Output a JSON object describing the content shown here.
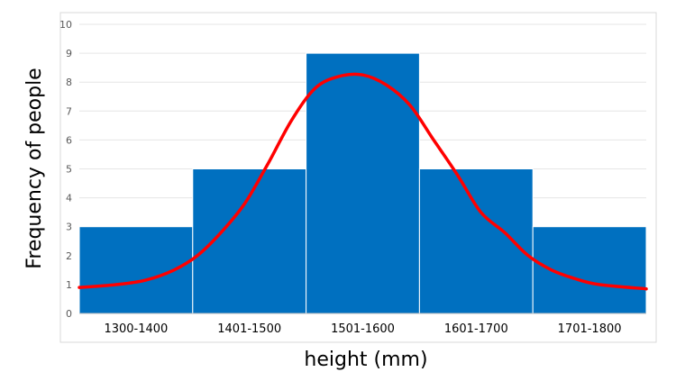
{
  "chart_data": {
    "type": "bar",
    "categories": [
      "1300-1400",
      "1401-1500",
      "1501-1600",
      "1601-1700",
      "1701-1800"
    ],
    "values": [
      3,
      5,
      9,
      5,
      3
    ],
    "xlabel": "height (mm)",
    "ylabel": "Frequency of people",
    "ylim": [
      0,
      10
    ],
    "yticks": [
      0,
      1,
      2,
      3,
      4,
      5,
      6,
      7,
      8,
      9,
      10
    ],
    "grid": true,
    "bar_color": "#0070C0",
    "curve": {
      "type": "line",
      "color": "#FF0000",
      "points": [
        {
          "x": 1300,
          "y": 0.9
        },
        {
          "x": 1340,
          "y": 1.0
        },
        {
          "x": 1370,
          "y": 1.15
        },
        {
          "x": 1400,
          "y": 1.5
        },
        {
          "x": 1425,
          "y": 2.0
        },
        {
          "x": 1450,
          "y": 2.8
        },
        {
          "x": 1475,
          "y": 3.8
        },
        {
          "x": 1500,
          "y": 5.2
        },
        {
          "x": 1525,
          "y": 6.7
        },
        {
          "x": 1550,
          "y": 7.8
        },
        {
          "x": 1575,
          "y": 8.2
        },
        {
          "x": 1600,
          "y": 8.25
        },
        {
          "x": 1625,
          "y": 7.9
        },
        {
          "x": 1650,
          "y": 7.2
        },
        {
          "x": 1675,
          "y": 6.0
        },
        {
          "x": 1700,
          "y": 4.8
        },
        {
          "x": 1725,
          "y": 3.5
        },
        {
          "x": 1750,
          "y": 2.8
        },
        {
          "x": 1775,
          "y": 2.0
        },
        {
          "x": 1800,
          "y": 1.5
        },
        {
          "x": 1825,
          "y": 1.2
        },
        {
          "x": 1850,
          "y": 1.0
        },
        {
          "x": 1900,
          "y": 0.85
        }
      ]
    }
  }
}
